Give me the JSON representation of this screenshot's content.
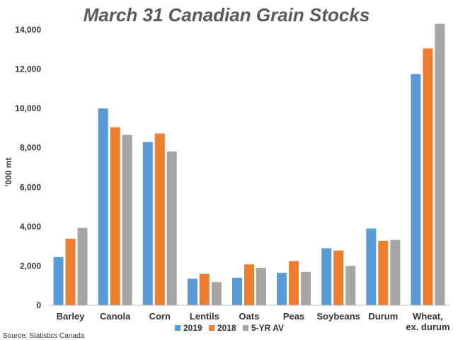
{
  "chart_data": {
    "type": "bar",
    "title": "March 31 Canadian Grain Stocks",
    "ylabel": "'000 mt",
    "xlabel": "",
    "ylim": [
      0,
      14000
    ],
    "yticks": [
      0,
      2000,
      4000,
      6000,
      8000,
      10000,
      12000,
      14000
    ],
    "ytick_labels": [
      "0",
      "2,000",
      "4,000",
      "6,000",
      "8,000",
      "10,000",
      "12,000",
      "14,000"
    ],
    "grid": false,
    "legend_position": "bottom",
    "categories": [
      [
        "Barley"
      ],
      [
        "Canola"
      ],
      [
        "Corn"
      ],
      [
        "Lentils"
      ],
      [
        "Oats"
      ],
      [
        "Peas"
      ],
      [
        "Soybeans"
      ],
      [
        "Durum"
      ],
      [
        "Wheat,",
        "ex. durum"
      ]
    ],
    "series": [
      {
        "name": "2019",
        "color": "#5b9bd5",
        "values": [
          2450,
          10000,
          8300,
          1350,
          1400,
          1650,
          2900,
          3900,
          11750
        ]
      },
      {
        "name": "2018",
        "color": "#ed7d31",
        "values": [
          3380,
          9050,
          8730,
          1600,
          2080,
          2250,
          2780,
          3280,
          13050
        ]
      },
      {
        "name": "5-YR AV",
        "color": "#a5a5a5",
        "values": [
          3930,
          8660,
          7820,
          1180,
          1910,
          1700,
          2000,
          3320,
          14300
        ]
      }
    ],
    "source": "Source: Statistics Canada"
  }
}
